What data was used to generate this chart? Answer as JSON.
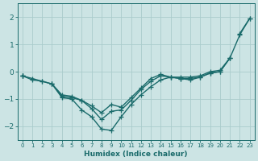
{
  "x": [
    0,
    1,
    2,
    3,
    4,
    5,
    6,
    7,
    8,
    9,
    10,
    11,
    12,
    13,
    14,
    15,
    16,
    17,
    18,
    19,
    20,
    21,
    22,
    23
  ],
  "line_straight": [
    -0.15,
    null,
    null,
    null,
    null,
    null,
    null,
    null,
    null,
    null,
    null,
    null,
    null,
    null,
    null,
    null,
    null,
    null,
    null,
    null,
    null,
    null,
    1.4,
    1.95
  ],
  "line_deep": [
    -0.15,
    -0.25,
    -0.35,
    -0.45,
    -0.95,
    -1.0,
    -1.4,
    -1.65,
    -2.1,
    -2.15,
    -1.65,
    -1.2,
    -0.85,
    -0.55,
    -0.3,
    -0.2,
    -0.25,
    -0.3,
    -0.2,
    -0.05,
    -0.0,
    0.5,
    1.35,
    1.95
  ],
  "line_mid1": [
    -0.15,
    -0.3,
    -0.35,
    -0.45,
    -0.9,
    -0.95,
    -1.05,
    -1.35,
    -1.75,
    -1.45,
    -1.4,
    -1.05,
    -0.65,
    -0.35,
    -0.15,
    -0.2,
    -0.25,
    -0.25,
    -0.2,
    -0.05,
    0.0,
    0.5,
    null,
    null
  ],
  "line_mid2": [
    -0.15,
    null,
    null,
    -0.45,
    -0.85,
    -0.9,
    -1.05,
    -1.25,
    -1.5,
    -1.2,
    -1.3,
    -0.95,
    -0.6,
    -0.25,
    -0.1,
    -0.2,
    -0.2,
    -0.2,
    -0.15,
    0.0,
    0.05,
    0.5,
    null,
    null
  ],
  "bg_color": "#cce4e4",
  "line_color": "#1a6b6b",
  "grid_color": "#aacccc",
  "xlabel": "Humidex (Indice chaleur)",
  "ylim": [
    -2.5,
    2.5
  ],
  "xlim": [
    -0.5,
    23.5
  ],
  "yticks": [
    -2,
    -1,
    0,
    1,
    2
  ],
  "xticks": [
    0,
    1,
    2,
    3,
    4,
    5,
    6,
    7,
    8,
    9,
    10,
    11,
    12,
    13,
    14,
    15,
    16,
    17,
    18,
    19,
    20,
    21,
    22,
    23
  ],
  "marker": "+",
  "markersize": 4,
  "linewidth": 1.0
}
